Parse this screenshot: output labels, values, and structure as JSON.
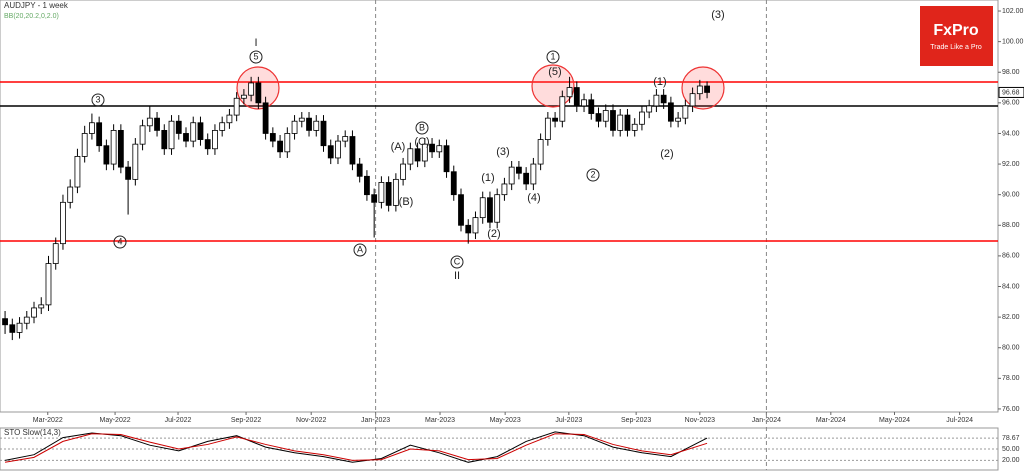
{
  "chart_data": {
    "type": "candlestick",
    "title": "AUDJPY - 1 week",
    "subtitle": "BB(20,20.2,0,2.0)",
    "brand": "FxPro",
    "brand_tagline": "Trade Like a Pro",
    "xlim": [
      -0.7,
      137.2
    ],
    "ylim": [
      75.8,
      102.72
    ],
    "xticks": [
      {
        "value": 5.9,
        "label": "Mar-2022"
      },
      {
        "value": 15.2,
        "label": "May-2022"
      },
      {
        "value": 23.9,
        "label": "Jul-2022"
      },
      {
        "value": 33.3,
        "label": "Sep-2022"
      },
      {
        "value": 42.3,
        "label": "Nov-2022"
      },
      {
        "value": 51.2,
        "label": "Jan-2023"
      },
      {
        "value": 60.1,
        "label": "Mar-2023"
      },
      {
        "value": 69.1,
        "label": "May-2023"
      },
      {
        "value": 77.9,
        "label": "Jul-2023"
      },
      {
        "value": 87.2,
        "label": "Sep-2023"
      },
      {
        "value": 96,
        "label": "Nov-2023"
      },
      {
        "value": 105.2,
        "label": "Jan-2024"
      },
      {
        "value": 114.1,
        "label": "Mar-2024"
      },
      {
        "value": 122.9,
        "label": "May-2024"
      },
      {
        "value": 131.9,
        "label": "Jul-2024"
      }
    ],
    "yticks": [
      {
        "value": 76,
        "label": "76.00"
      },
      {
        "value": 78,
        "label": "78.00"
      },
      {
        "value": 80,
        "label": "80.00"
      },
      {
        "value": 82,
        "label": "82.00"
      },
      {
        "value": 84,
        "label": "84.00"
      },
      {
        "value": 86,
        "label": "86.00"
      },
      {
        "value": 88,
        "label": "88.00"
      },
      {
        "value": 90,
        "label": "90.00"
      },
      {
        "value": 92,
        "label": "92.00"
      },
      {
        "value": 94,
        "label": "94.00"
      },
      {
        "value": 96,
        "label": "96.00"
      },
      {
        "value": 98,
        "label": "98.00"
      },
      {
        "value": 100,
        "label": "100.00"
      },
      {
        "value": 102,
        "label": "102.00"
      }
    ],
    "year_separators": [
      51.2,
      105.2
    ],
    "levels": [
      {
        "value": 97.36,
        "color": "#ff0000"
      },
      {
        "value": 95.79,
        "color": "#000000"
      },
      {
        "value": 86.97,
        "color": "#ff0000"
      }
    ],
    "x": [
      0,
      1,
      2,
      3,
      4,
      5,
      6,
      7,
      8,
      9,
      10,
      11,
      12,
      13,
      14,
      15,
      16,
      17,
      18,
      19,
      20,
      21,
      22,
      23,
      24,
      25,
      26,
      27,
      28,
      29,
      30,
      31,
      32,
      33,
      34,
      35,
      36,
      37,
      38,
      39,
      40,
      41,
      42,
      43,
      44,
      45,
      46,
      47,
      48,
      49,
      50,
      51,
      52,
      53,
      54,
      55,
      56,
      57,
      58,
      59,
      60,
      61,
      62,
      63,
      64,
      65,
      66,
      67,
      68,
      69,
      70,
      71,
      72,
      73,
      74,
      75,
      76,
      77,
      78,
      79,
      80,
      81,
      82,
      83,
      84,
      85,
      86,
      87,
      88,
      89,
      90,
      91,
      92,
      93,
      94,
      95,
      96,
      97
    ],
    "ohlc": [
      [
        81.9,
        82.4,
        80.9,
        81.5
      ],
      [
        81.5,
        81.9,
        80.5,
        81.0
      ],
      [
        81.0,
        82.0,
        80.6,
        81.6
      ],
      [
        81.6,
        82.4,
        81.2,
        82.0
      ],
      [
        82.0,
        83.0,
        81.6,
        82.6
      ],
      [
        82.6,
        83.3,
        82.2,
        82.8
      ],
      [
        82.8,
        86.0,
        82.4,
        85.5
      ],
      [
        85.5,
        87.2,
        85.1,
        86.8
      ],
      [
        86.8,
        90.0,
        86.4,
        89.5
      ],
      [
        89.5,
        91.0,
        89.1,
        90.5
      ],
      [
        90.5,
        93.0,
        90.1,
        92.5
      ],
      [
        92.5,
        94.5,
        92.1,
        94.0
      ],
      [
        94.0,
        95.3,
        93.6,
        94.7
      ],
      [
        94.7,
        95.1,
        92.8,
        93.2
      ],
      [
        93.2,
        93.6,
        91.6,
        92.0
      ],
      [
        92.0,
        94.6,
        91.6,
        94.2
      ],
      [
        94.2,
        94.6,
        91.4,
        91.8
      ],
      [
        91.8,
        92.2,
        88.7,
        91.0
      ],
      [
        91.0,
        93.7,
        90.6,
        93.3
      ],
      [
        93.3,
        94.9,
        92.9,
        94.5
      ],
      [
        94.5,
        95.8,
        94.1,
        95.0
      ],
      [
        95.0,
        95.4,
        93.8,
        94.2
      ],
      [
        94.2,
        94.6,
        92.6,
        93.0
      ],
      [
        93.0,
        95.2,
        92.6,
        94.8
      ],
      [
        94.8,
        95.2,
        93.6,
        94.0
      ],
      [
        94.0,
        94.4,
        93.1,
        93.5
      ],
      [
        93.5,
        95.1,
        93.1,
        94.7
      ],
      [
        94.7,
        95.1,
        93.2,
        93.6
      ],
      [
        93.6,
        94.0,
        92.6,
        93.0
      ],
      [
        93.0,
        94.6,
        92.6,
        94.2
      ],
      [
        94.2,
        95.1,
        93.8,
        94.7
      ],
      [
        94.7,
        95.6,
        94.3,
        95.2
      ],
      [
        95.2,
        96.7,
        94.8,
        96.3
      ],
      [
        96.3,
        96.9,
        95.9,
        96.5
      ],
      [
        96.5,
        97.7,
        96.1,
        97.3
      ],
      [
        97.3,
        97.7,
        95.6,
        96.0
      ],
      [
        96.0,
        96.4,
        93.6,
        94.0
      ],
      [
        94.0,
        94.4,
        93.1,
        93.5
      ],
      [
        93.5,
        93.9,
        92.4,
        92.8
      ],
      [
        92.8,
        94.4,
        92.4,
        94.0
      ],
      [
        94.0,
        95.2,
        93.6,
        94.8
      ],
      [
        94.8,
        95.4,
        94.4,
        95.0
      ],
      [
        95.0,
        95.4,
        93.8,
        94.2
      ],
      [
        94.2,
        95.2,
        93.8,
        94.8
      ],
      [
        94.8,
        95.2,
        92.8,
        93.2
      ],
      [
        93.2,
        93.6,
        92.0,
        92.4
      ],
      [
        92.4,
        93.9,
        92.0,
        93.5
      ],
      [
        93.5,
        94.2,
        93.1,
        93.8
      ],
      [
        93.8,
        94.2,
        91.6,
        92.0
      ],
      [
        92.0,
        92.4,
        90.8,
        91.2
      ],
      [
        91.2,
        91.6,
        89.6,
        90.0
      ],
      [
        90.0,
        90.4,
        87.2,
        89.5
      ],
      [
        89.5,
        91.2,
        89.1,
        90.8
      ],
      [
        90.8,
        91.2,
        88.9,
        89.3
      ],
      [
        89.3,
        91.4,
        88.9,
        91.0
      ],
      [
        91.0,
        92.4,
        90.6,
        92.0
      ],
      [
        92.0,
        93.4,
        91.6,
        93.0
      ],
      [
        93.0,
        93.4,
        91.8,
        92.2
      ],
      [
        92.2,
        93.7,
        91.8,
        93.3
      ],
      [
        93.3,
        93.7,
        92.4,
        92.8
      ],
      [
        92.8,
        93.6,
        92.4,
        93.2
      ],
      [
        93.2,
        93.6,
        91.1,
        91.5
      ],
      [
        91.5,
        91.9,
        89.6,
        90.0
      ],
      [
        90.0,
        90.4,
        87.6,
        88.0
      ],
      [
        88.0,
        88.4,
        86.8,
        87.5
      ],
      [
        87.5,
        88.9,
        87.1,
        88.5
      ],
      [
        88.5,
        90.2,
        88.1,
        89.8
      ],
      [
        89.8,
        90.2,
        87.8,
        88.2
      ],
      [
        88.2,
        90.4,
        87.8,
        90.0
      ],
      [
        90.0,
        91.1,
        89.6,
        90.7
      ],
      [
        90.7,
        92.2,
        90.3,
        91.8
      ],
      [
        91.8,
        92.2,
        91.0,
        91.4
      ],
      [
        91.4,
        91.8,
        90.3,
        90.7
      ],
      [
        90.7,
        92.4,
        90.3,
        92.0
      ],
      [
        92.0,
        94.0,
        91.6,
        93.6
      ],
      [
        93.6,
        95.4,
        93.2,
        95.0
      ],
      [
        95.0,
        95.4,
        94.4,
        94.8
      ],
      [
        94.8,
        96.8,
        94.4,
        96.4
      ],
      [
        96.4,
        97.7,
        96.0,
        97.0
      ],
      [
        97.0,
        97.4,
        95.4,
        95.8
      ],
      [
        95.8,
        96.6,
        95.4,
        96.2
      ],
      [
        96.2,
        96.6,
        94.9,
        95.3
      ],
      [
        95.3,
        95.7,
        94.4,
        94.8
      ],
      [
        94.8,
        95.9,
        94.4,
        95.5
      ],
      [
        95.5,
        95.9,
        93.8,
        94.2
      ],
      [
        94.2,
        95.6,
        93.8,
        95.2
      ],
      [
        95.2,
        95.6,
        93.8,
        94.2
      ],
      [
        94.2,
        95.0,
        93.8,
        94.6
      ],
      [
        94.6,
        95.8,
        94.2,
        95.4
      ],
      [
        95.4,
        96.2,
        95.0,
        95.8
      ],
      [
        95.8,
        96.9,
        95.4,
        96.5
      ],
      [
        96.5,
        96.9,
        95.6,
        96.0
      ],
      [
        96.0,
        96.4,
        94.4,
        94.8
      ],
      [
        94.8,
        95.4,
        94.4,
        95.0
      ],
      [
        95.0,
        96.2,
        94.6,
        95.8
      ],
      [
        95.8,
        97.0,
        95.4,
        96.6
      ],
      [
        96.6,
        97.5,
        96.2,
        97.1
      ],
      [
        97.1,
        97.4,
        96.3,
        96.68
      ]
    ],
    "wave_labels": [
      "I",
      "5",
      "3",
      "4",
      "A",
      "(A)",
      "B",
      "(C)",
      "(B)",
      "C",
      "II",
      "(1)",
      "(2)",
      "(3)",
      "(4)",
      "1",
      "(5)",
      "2",
      "(1)",
      "(2)",
      "(3)"
    ],
    "indicator": {
      "title": "STO Slow(14,3)",
      "ylim": [
        0,
        100
      ],
      "yticks": [
        78.67,
        {
          "value": 50,
          "label": "50.00"
        },
        {
          "value": 20,
          "label": "20.00"
        }
      ],
      "x": [
        0,
        4,
        8,
        12,
        16,
        20,
        24,
        28,
        32,
        36,
        40,
        44,
        48,
        52,
        56,
        60,
        64,
        68,
        72,
        76,
        80,
        84,
        88,
        92,
        97
      ],
      "series": [
        {
          "color": "#000000",
          "values": [
            20,
            35,
            80,
            92,
            85,
            60,
            45,
            70,
            85,
            55,
            40,
            30,
            15,
            25,
            60,
            40,
            15,
            30,
            70,
            95,
            85,
            55,
            40,
            30,
            78.67
          ]
        },
        {
          "color": "#cc0000",
          "values": [
            15,
            28,
            70,
            90,
            88,
            68,
            50,
            62,
            82,
            62,
            45,
            35,
            20,
            22,
            50,
            45,
            22,
            25,
            60,
            90,
            88,
            62,
            45,
            35,
            65
          ]
        }
      ]
    }
  }
}
